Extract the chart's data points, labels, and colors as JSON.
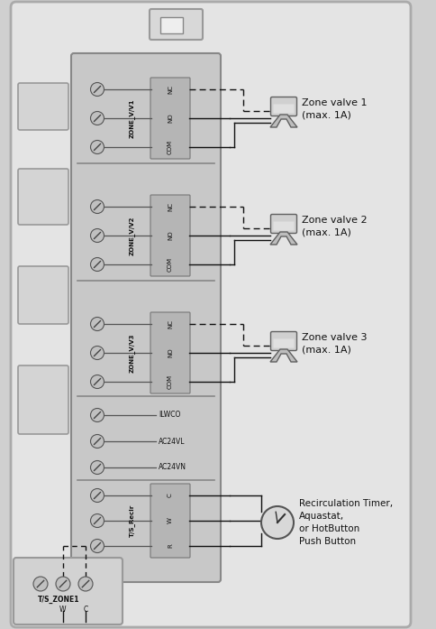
{
  "bg_outer": "#d0d0d0",
  "bg_panel": "#e2e2e2",
  "panel_border": "#999999",
  "tb_bg": "#c4c4c4",
  "tb_border": "#888888",
  "sub_bg": "#b8b8b8",
  "sub_border": "#777777",
  "screw_fill": "#c0c0c0",
  "screw_border": "#555555",
  "wire_color": "#111111",
  "label_color": "#111111",
  "zone_labels": [
    "ZONE_V/V1",
    "ZONE_V/V2",
    "ZONE_V/V3"
  ],
  "term_labels": [
    [
      "NC",
      "NO",
      "COM"
    ],
    [
      "NC",
      "NO",
      "COM"
    ],
    [
      "NC",
      "NO",
      "COM"
    ]
  ],
  "single_labels": [
    "ILWCO",
    "AC24VL",
    "AC24VN"
  ],
  "recir_label": "T/S_Recir",
  "recir_terms": [
    "C",
    "W",
    "R"
  ],
  "valve_labels": [
    "Zone valve 1\n(max. 1A)",
    "Zone valve 2\n(max. 1A)",
    "Zone valve 3\n(max. 1A)"
  ],
  "recir_device_label": "Recirculation Timer,\nAquastat,\nor HotButton\nPush Button",
  "ts_zone_label": "T/S_ZONE1",
  "bottom_terms": [
    "W",
    "C"
  ]
}
